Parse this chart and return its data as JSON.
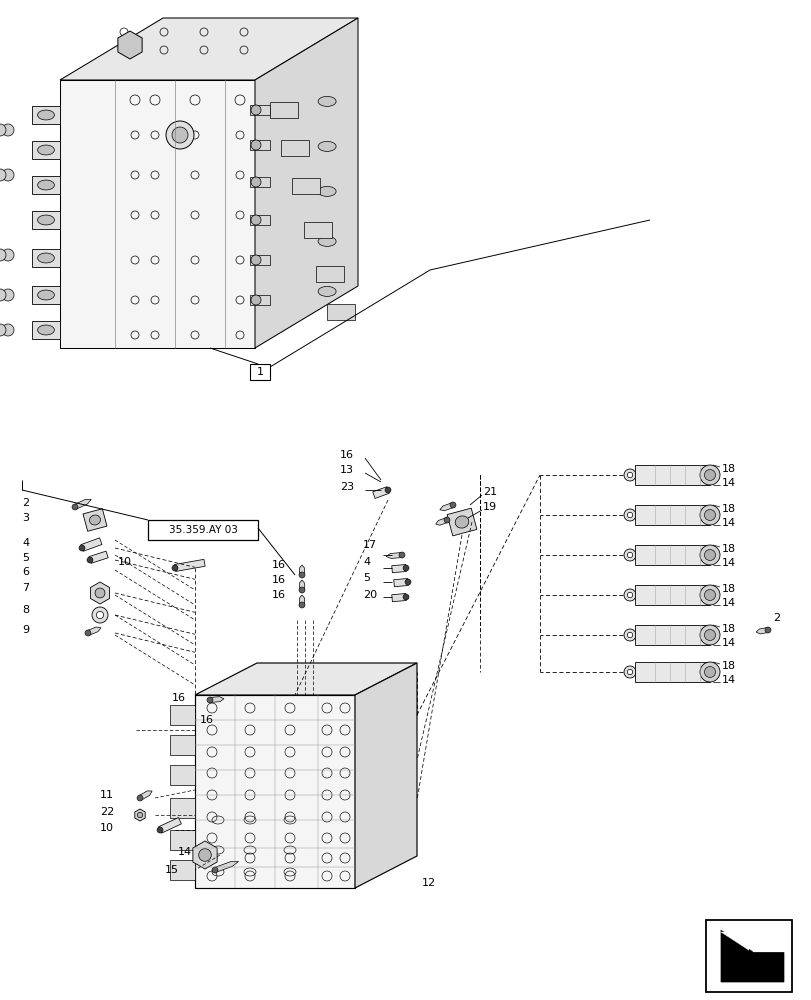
{
  "bg_color": "#ffffff",
  "fig_width": 8.12,
  "fig_height": 10.0,
  "dpi": 100,
  "ref_label": "35.359.AY 03",
  "label_1": "1",
  "label_12": "12"
}
